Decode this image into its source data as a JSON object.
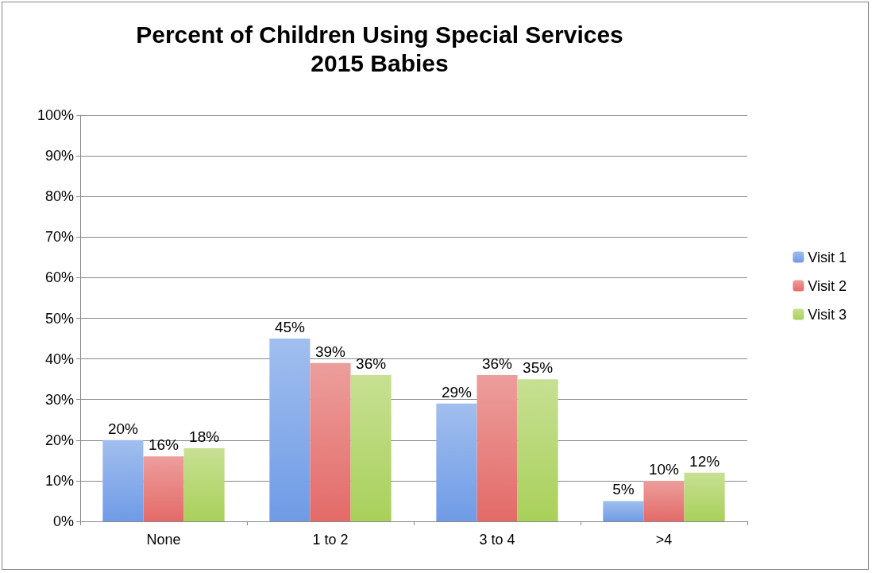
{
  "chart_data": {
    "type": "bar",
    "title": "Percent of Children Using Special Services",
    "subtitle": "2015 Babies",
    "categories": [
      "None",
      "1 to 2",
      "3 to 4",
      ">4"
    ],
    "series": [
      {
        "name": "Visit 1",
        "color": "#6f9be6",
        "values": [
          20,
          45,
          29,
          5
        ],
        "value_labels": [
          "20%",
          "45%",
          "29%",
          "5%"
        ]
      },
      {
        "name": "Visit 2",
        "color": "#e36a68",
        "values": [
          16,
          39,
          36,
          10
        ],
        "value_labels": [
          "16%",
          "39%",
          "36%",
          "10%"
        ]
      },
      {
        "name": "Visit 3",
        "color": "#a9d05a",
        "values": [
          18,
          36,
          35,
          12
        ],
        "value_labels": [
          "18%",
          "36%",
          "35%",
          "12%"
        ]
      }
    ],
    "ylim": [
      0,
      100
    ],
    "yticks": [
      {
        "value": 0,
        "label": "0%"
      },
      {
        "value": 10,
        "label": "10%"
      },
      {
        "value": 20,
        "label": "20%"
      },
      {
        "value": 30,
        "label": "30%"
      },
      {
        "value": 40,
        "label": "40%"
      },
      {
        "value": 50,
        "label": "50%"
      },
      {
        "value": 60,
        "label": "60%"
      },
      {
        "value": 70,
        "label": "70%"
      },
      {
        "value": 80,
        "label": "80%"
      },
      {
        "value": 90,
        "label": "90%"
      },
      {
        "value": 100,
        "label": "100%"
      }
    ],
    "grid": "y",
    "legend": "right"
  }
}
